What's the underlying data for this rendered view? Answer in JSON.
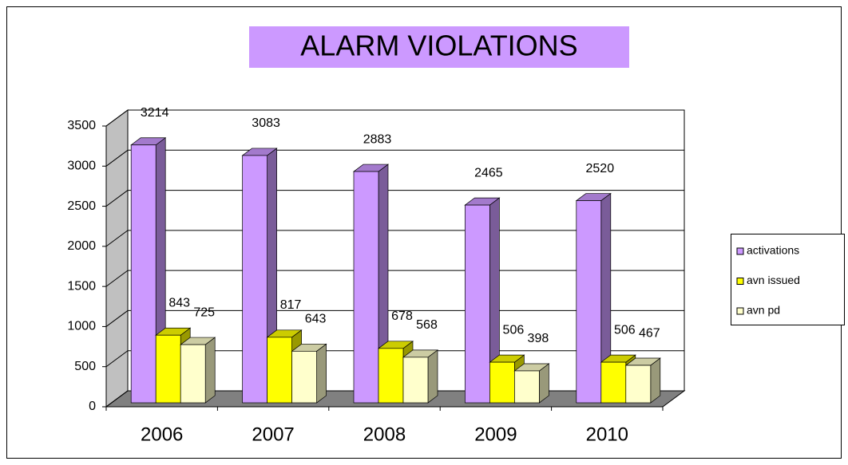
{
  "chart_data": {
    "type": "bar3d",
    "title": "ALARM VIOLATIONS",
    "categories": [
      "2006",
      "2007",
      "2008",
      "2009",
      "2010"
    ],
    "series": [
      {
        "name": "activations",
        "color": "#cc99ff",
        "values": [
          3214,
          3083,
          2883,
          2465,
          2520
        ]
      },
      {
        "name": "avn issued",
        "color": "#ffff00",
        "values": [
          843,
          817,
          678,
          506,
          506
        ]
      },
      {
        "name": "avn pd",
        "color": "#ffffcc",
        "values": [
          725,
          643,
          568,
          398,
          467
        ]
      }
    ],
    "ylim": [
      0,
      3500
    ],
    "yticks": [
      0,
      500,
      1000,
      1500,
      2000,
      2500,
      3000,
      3500
    ],
    "grid": true,
    "legend": "right",
    "title_background": "#cc99ff"
  }
}
